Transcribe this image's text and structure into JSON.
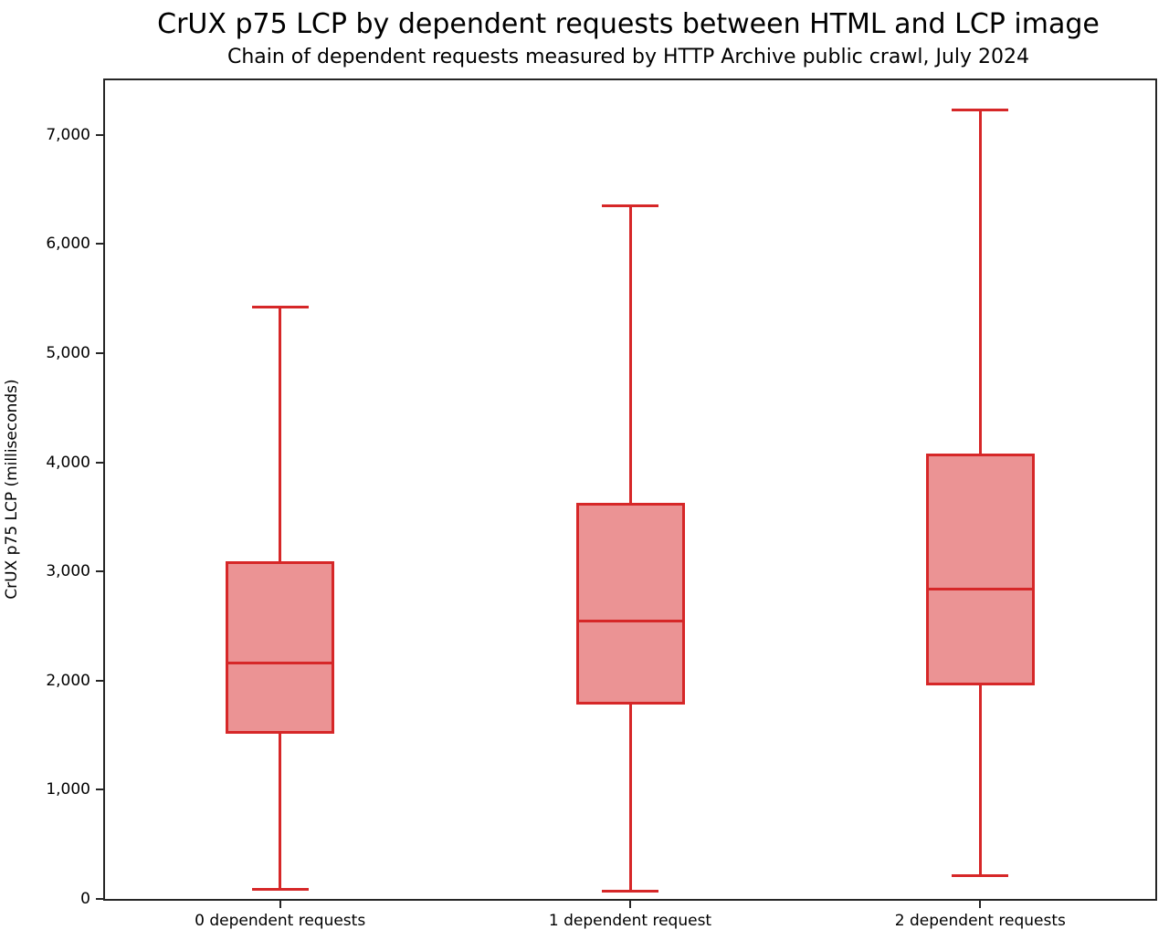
{
  "chart_data": {
    "type": "boxplot",
    "title": "CrUX p75 LCP by dependent requests between HTML and LCP image",
    "subtitle": "Chain of dependent requests measured by HTTP Archive public crawl, July 2024",
    "ylabel": "CrUX p75 LCP (milliseconds)",
    "xlabel": "",
    "ylim": [
      0,
      7500
    ],
    "yticks": [
      0,
      1000,
      2000,
      3000,
      4000,
      5000,
      6000,
      7000
    ],
    "ytick_labels": [
      "0",
      "1,000",
      "2,000",
      "3,000",
      "4,000",
      "5,000",
      "6,000",
      "7,000"
    ],
    "categories": [
      "0 dependent requests",
      "1 dependent request",
      "2 dependent requests"
    ],
    "series": [
      {
        "category": "0 dependent requests",
        "whisker_low": 90,
        "q1": 1530,
        "median": 2165,
        "q3": 3080,
        "whisker_high": 5425
      },
      {
        "category": "1 dependent request",
        "whisker_low": 70,
        "q1": 1790,
        "median": 2550,
        "q3": 3620,
        "whisker_high": 6350
      },
      {
        "category": "2 dependent requests",
        "whisker_low": 215,
        "q1": 1970,
        "median": 2840,
        "q3": 4070,
        "whisker_high": 7230
      }
    ],
    "grid": false,
    "legend": "none",
    "colors": {
      "box_fill": "#eb9394",
      "box_edge": "#d62728",
      "median": "#d62728",
      "whisker": "#d62728",
      "spine": "#262626",
      "text": "#000000"
    }
  }
}
